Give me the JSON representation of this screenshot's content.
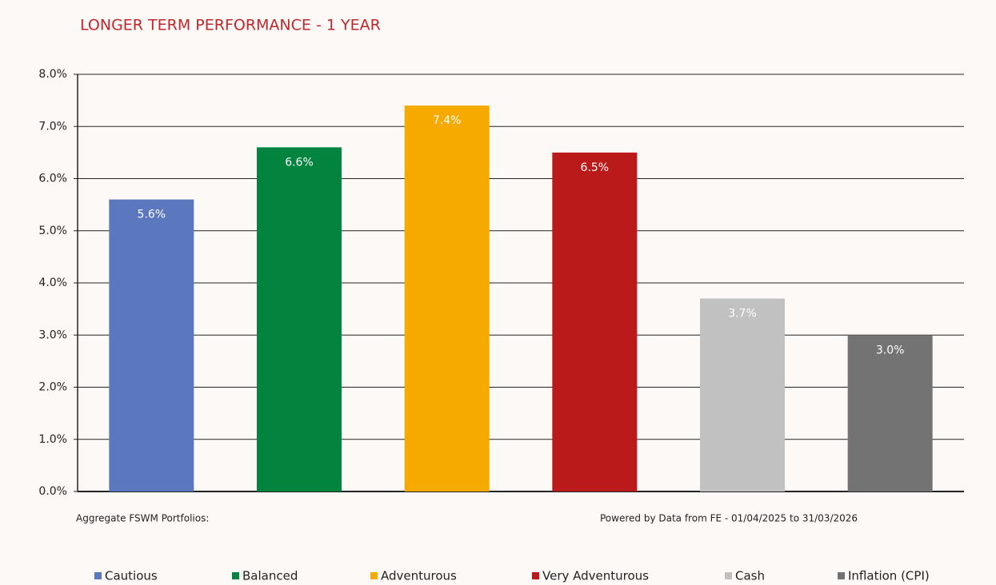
{
  "chart_data": {
    "type": "bar",
    "title": "LONGER TERM PERFORMANCE - 1 YEAR",
    "categories": [
      "Cautious",
      "Balanced",
      "Adventurous",
      "Very Adventurous",
      "Cash",
      "Inflation (CPI)"
    ],
    "values": [
      5.6,
      6.6,
      7.4,
      6.5,
      3.7,
      3.0
    ],
    "value_labels": [
      "5.6%",
      "6.6%",
      "7.4%",
      "6.5%",
      "3.7%",
      "3.0%"
    ],
    "colors": [
      "#5b77bd",
      "#02843f",
      "#f6aa00",
      "#bb1a1b",
      "#c1c1c1",
      "#737373"
    ],
    "ylim": [
      0,
      8
    ],
    "yticks": [
      {
        "value": 0,
        "label": "0.0%"
      },
      {
        "value": 1,
        "label": "1.0%"
      },
      {
        "value": 2,
        "label": "2.0%"
      },
      {
        "value": 3,
        "label": "3.0%"
      },
      {
        "value": 4,
        "label": "4.0%"
      },
      {
        "value": 5,
        "label": "5.0%"
      },
      {
        "value": 6,
        "label": "6.0%"
      },
      {
        "value": 7,
        "label": "7.0%"
      },
      {
        "value": 8,
        "label": "8.0%"
      }
    ],
    "grid": true,
    "legend": "bottom",
    "notes": [
      "Aggregate FSWM Portfolios:",
      "Powered by Data from FE - 01/04/2025 to 31/03/2026"
    ]
  }
}
